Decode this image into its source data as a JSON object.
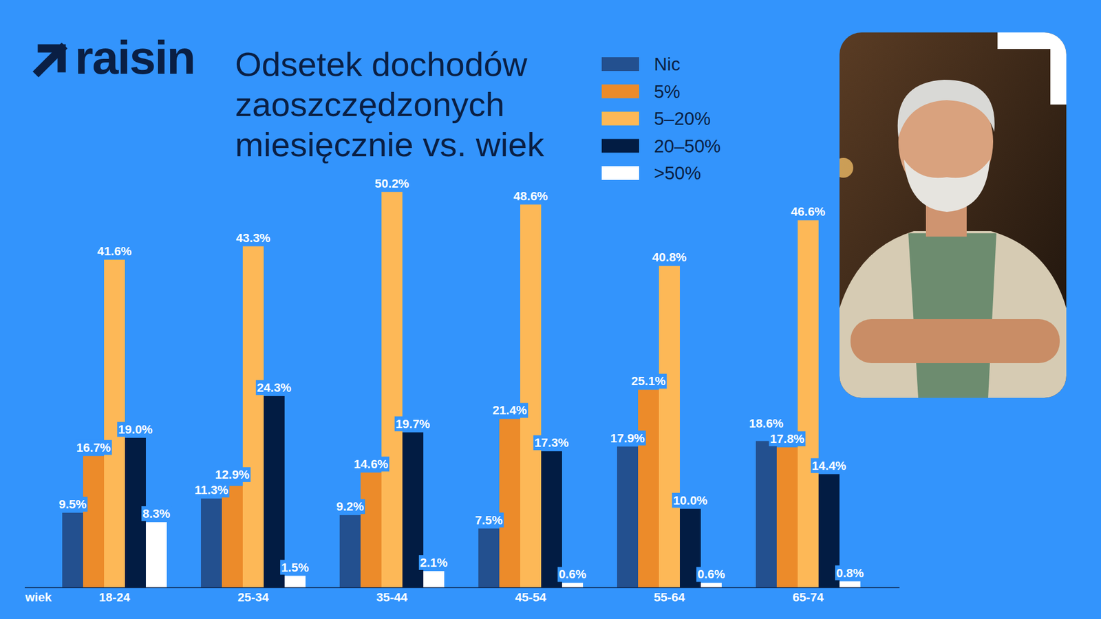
{
  "brand": "raisin",
  "chart_data": {
    "type": "bar",
    "title": "Odsetek dochodów zaoszczędzonych miesięcznie vs. wiek",
    "x_label": "wiek",
    "categories": [
      "18-24",
      "25-34",
      "35-44",
      "45-54",
      "55-64",
      "65-74"
    ],
    "series": [
      {
        "name": "Nic",
        "color": "#23508f",
        "values": [
          9.5,
          11.3,
          9.2,
          7.5,
          17.9,
          18.6
        ],
        "value_labels": [
          "9.5%",
          "11.3%",
          "9.2%",
          "7.5%",
          "17.9%",
          "18.6%"
        ]
      },
      {
        "name": "5%",
        "color": "#ec8b2a",
        "values": [
          16.7,
          12.9,
          14.6,
          21.4,
          25.1,
          17.8
        ],
        "value_labels": [
          "16.7%",
          "12.9%",
          "14.6%",
          "21.4%",
          "25.1%",
          "17.8%"
        ]
      },
      {
        "name": "5–20%",
        "color": "#fdb857",
        "values": [
          41.6,
          43.3,
          50.2,
          48.6,
          40.8,
          46.6
        ],
        "value_labels": [
          "41.6%",
          "43.3%",
          "50.2%",
          "48.6%",
          "40.8%",
          "46.6%"
        ]
      },
      {
        "name": "20–50%",
        "color": "#021c43",
        "values": [
          19.0,
          24.3,
          19.7,
          17.3,
          10.0,
          14.4
        ],
        "value_labels": [
          "19.0%",
          "24.3%",
          "19.7%",
          "17.3%",
          "10.0%",
          "14.4%"
        ]
      },
      {
        "name": ">50%",
        "color": "#ffffff",
        "values": [
          8.3,
          1.5,
          2.1,
          0.6,
          0.6,
          0.8
        ],
        "value_labels": [
          "8.3%",
          "1.5%",
          "2.1%",
          "0.6%",
          "0.6%",
          "0.8%"
        ]
      }
    ],
    "ylim": [
      0,
      55
    ],
    "legend": "top",
    "data_labels": true,
    "tick_labels": "x",
    "grid": false
  }
}
